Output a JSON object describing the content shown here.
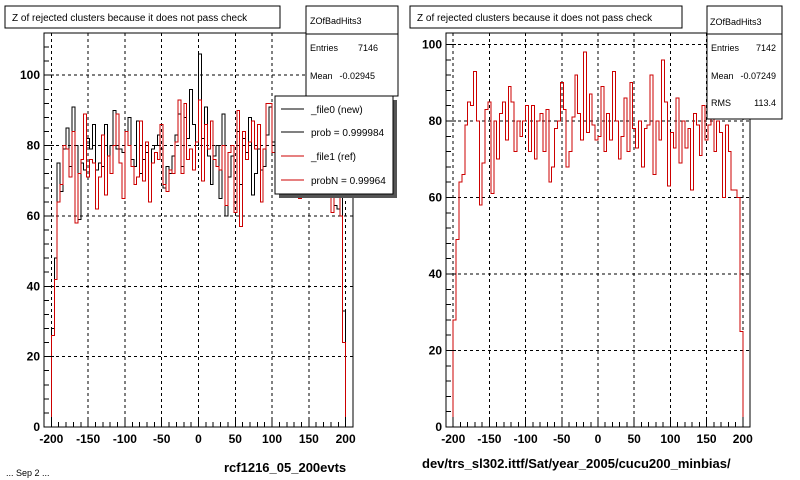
{
  "footer_fragment": "... Sep 2 ...",
  "chart_data": [
    {
      "type": "histogram",
      "title": "Z of rejected clusters  because it does not pass check",
      "caption": "rcf1216_05_200evts",
      "xlim": [
        -210,
        210
      ],
      "ylim": [
        0,
        112
      ],
      "x_ticks": [
        -200,
        -150,
        -100,
        -50,
        0,
        50,
        100,
        150,
        200
      ],
      "y_ticks": [
        0,
        20,
        40,
        60,
        80,
        100
      ],
      "grid": true,
      "bin_range": [
        -200,
        200
      ],
      "stats": {
        "name": "ZOfBadHits3",
        "rows": [
          {
            "label": "Entries",
            "value": "7146"
          },
          {
            "label": "Mean",
            "value": "-0.02945"
          }
        ]
      },
      "legend": {
        "position": "top-right",
        "entries": [
          {
            "label": "_file0 (new)",
            "color": "#000000"
          },
          {
            "label": "prob = 0.999984",
            "color": "#000000"
          },
          {
            "label": "_file1 (ref)",
            "color": "#cc0000"
          },
          {
            "label": "probN = 0.99964",
            "color": "#cc0000"
          }
        ]
      },
      "series": [
        {
          "name": "_file0 (new)",
          "color": "#000000",
          "values": [
            28,
            48,
            75,
            67,
            79,
            85,
            74,
            91,
            80,
            59,
            75,
            73,
            82,
            79,
            86,
            73,
            75,
            74,
            86,
            77,
            80,
            90,
            79,
            79,
            78,
            84,
            88,
            76,
            74,
            87,
            72,
            76,
            78,
            64,
            79,
            80,
            83,
            79,
            68,
            74,
            72,
            77,
            83,
            89,
            74,
            88,
            82,
            96,
            86,
            80,
            106,
            82,
            91,
            77,
            69,
            77,
            80,
            65,
            89,
            60,
            71,
            77,
            64,
            84,
            69,
            82,
            78,
            88,
            66,
            72,
            79,
            73,
            74,
            83,
            91,
            81,
            75,
            72,
            81,
            69,
            77,
            73,
            79,
            75,
            67,
            80,
            77,
            79,
            71,
            73,
            70,
            69,
            72,
            74,
            70,
            69,
            63,
            62,
            66,
            33
          ]
        },
        {
          "name": "_file1 (ref)",
          "color": "#cc0000",
          "values": [
            26,
            42,
            64,
            69,
            80,
            79,
            71,
            84,
            58,
            72,
            76,
            89,
            71,
            76,
            75,
            62,
            71,
            83,
            66,
            77,
            72,
            80,
            89,
            75,
            65,
            84,
            80,
            74,
            69,
            71,
            87,
            70,
            81,
            64,
            75,
            78,
            76,
            86,
            69,
            67,
            73,
            72,
            81,
            93,
            72,
            92,
            76,
            79,
            73,
            81,
            93,
            70,
            86,
            79,
            87,
            76,
            74,
            73,
            80,
            63,
            78,
            80,
            61,
            90,
            57,
            84,
            76,
            81,
            87,
            79,
            86,
            64,
            79,
            92,
            92,
            78,
            85,
            74,
            79,
            66,
            73,
            77,
            77,
            75,
            65,
            83,
            72,
            81,
            68,
            76,
            73,
            75,
            67,
            72,
            75,
            61,
            66,
            70,
            60,
            24
          ]
        }
      ]
    },
    {
      "type": "histogram",
      "title": "Z of rejected clusters  because it does not pass check",
      "caption": "dev/trs_sl302.ittf/Sat/year_2005/cucu200_minbias/",
      "xlim": [
        -210,
        210
      ],
      "ylim": [
        0,
        103
      ],
      "x_ticks": [
        -200,
        -150,
        -100,
        -50,
        0,
        50,
        100,
        150,
        200
      ],
      "y_ticks": [
        0,
        20,
        40,
        60,
        80,
        100
      ],
      "grid": true,
      "bin_range": [
        -200,
        200
      ],
      "stats": {
        "name": "ZOfBadHits3",
        "rows": [
          {
            "label": "Entries",
            "value": "7142"
          },
          {
            "label": "Mean",
            "value": "-0.07249"
          },
          {
            "label": "RMS",
            "value": "113.4"
          }
        ]
      },
      "series": [
        {
          "name": "_file1 (ref)",
          "color": "#cc0000",
          "values": [
            28,
            49,
            64,
            66,
            79,
            85,
            84,
            93,
            80,
            58,
            69,
            83,
            85,
            61,
            80,
            70,
            82,
            85,
            75,
            89,
            85,
            72,
            80,
            76,
            80,
            84,
            72,
            84,
            70,
            80,
            82,
            72,
            83,
            64,
            68,
            78,
            80,
            90,
            83,
            68,
            72,
            81,
            92,
            82,
            75,
            98,
            77,
            87,
            79,
            75,
            76,
            89,
            72,
            82,
            75,
            93,
            80,
            70,
            76,
            86,
            72,
            90,
            78,
            73,
            80,
            68,
            78,
            79,
            92,
            66,
            80,
            75,
            96,
            85,
            63,
            77,
            73,
            86,
            69,
            80,
            73,
            78,
            62,
            82,
            79,
            71,
            84,
            75,
            79,
            85,
            72,
            80,
            77,
            60,
            79,
            72,
            62,
            62,
            60,
            25
          ]
        }
      ]
    }
  ]
}
